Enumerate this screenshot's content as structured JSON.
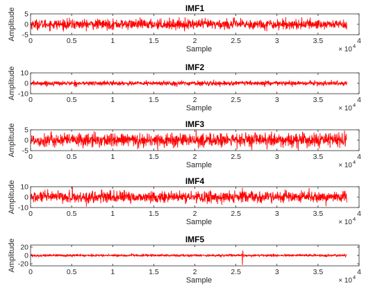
{
  "chart_data": [
    {
      "type": "line",
      "title": "IMF1",
      "xlabel": "Sample",
      "ylabel": "Amplitude",
      "x_exponent_base": "× 10",
      "x_exponent_power": "4",
      "xlim": [
        0,
        4
      ],
      "ylim": [
        -5,
        5
      ],
      "xticks": [
        "0",
        "0.5",
        "1",
        "1.5",
        "2",
        "2.5",
        "3",
        "3.5",
        "4"
      ],
      "yticks": [
        "-5",
        "0",
        "5"
      ],
      "ytick_values": [
        -5,
        0,
        5
      ],
      "x_data_range": [
        0,
        3.85
      ],
      "series": [
        {
          "typical_amplitude": 2.2,
          "peak_amplitude": 3.4,
          "color": "#ff0000",
          "spikes": []
        }
      ]
    },
    {
      "type": "line",
      "title": "IMF2",
      "xlabel": "Sample",
      "ylabel": "Amplitude",
      "x_exponent_base": "× 10",
      "x_exponent_power": "4",
      "xlim": [
        0,
        4
      ],
      "ylim": [
        -10,
        10
      ],
      "xticks": [
        "0",
        "0.5",
        "1",
        "1.5",
        "2",
        "2.5",
        "3",
        "3.5",
        "4"
      ],
      "yticks": [
        "-10",
        "0",
        "10"
      ],
      "ytick_values": [
        -10,
        0,
        10
      ],
      "x_data_range": [
        0,
        3.85
      ],
      "series": [
        {
          "typical_amplitude": 2.0,
          "peak_amplitude": 4.5,
          "color": "#ff0000",
          "spikes": []
        }
      ]
    },
    {
      "type": "line",
      "title": "IMF3",
      "xlabel": "Sample",
      "ylabel": "Amplitude",
      "x_exponent_base": "× 10",
      "x_exponent_power": "4",
      "xlim": [
        0,
        4
      ],
      "ylim": [
        -5,
        5
      ],
      "xticks": [
        "0",
        "0.5",
        "1",
        "1.5",
        "2",
        "2.5",
        "3",
        "3.5",
        "4"
      ],
      "yticks": [
        "-5",
        "0",
        "5"
      ],
      "ytick_values": [
        -5,
        0,
        5
      ],
      "x_data_range": [
        0,
        3.85
      ],
      "series": [
        {
          "typical_amplitude": 3.0,
          "peak_amplitude": 5.0,
          "color": "#ff0000",
          "spikes": []
        }
      ]
    },
    {
      "type": "line",
      "title": "IMF4",
      "xlabel": "Sample",
      "ylabel": "Amplitude",
      "x_exponent_base": "× 10",
      "x_exponent_power": "4",
      "xlim": [
        0,
        4
      ],
      "ylim": [
        -10,
        10
      ],
      "xticks": [
        "0",
        "0.5",
        "1",
        "1.5",
        "2",
        "2.5",
        "3",
        "3.5",
        "4"
      ],
      "yticks": [
        "-10",
        "0",
        "10"
      ],
      "ytick_values": [
        -10,
        0,
        10
      ],
      "x_data_range": [
        0,
        3.85
      ],
      "series": [
        {
          "typical_amplitude": 5.0,
          "peak_amplitude": 9.0,
          "color": "#ff0000",
          "spikes": [
            {
              "x": 0.51,
              "y": 12
            },
            {
              "x": 2.58,
              "y": 9
            }
          ]
        }
      ]
    },
    {
      "type": "line",
      "title": "IMF5",
      "xlabel": "Sample",
      "ylabel": "Amplitude",
      "x_exponent_base": "× 10",
      "x_exponent_power": "4",
      "xlim": [
        0,
        4
      ],
      "ylim": [
        -25,
        25
      ],
      "xticks": [
        "0",
        "0.5",
        "1",
        "1.5",
        "2",
        "2.5",
        "3",
        "3.5",
        "4"
      ],
      "yticks": [
        "-20",
        "0",
        "20"
      ],
      "ytick_values": [
        -20,
        0,
        20
      ],
      "x_data_range": [
        0,
        3.85
      ],
      "series": [
        {
          "typical_amplitude": 2.5,
          "peak_amplitude": 5.0,
          "color": "#ff0000",
          "spikes": [
            {
              "x": 2.58,
              "y": -23
            },
            {
              "x": 2.585,
              "y": 12
            }
          ]
        }
      ]
    }
  ]
}
